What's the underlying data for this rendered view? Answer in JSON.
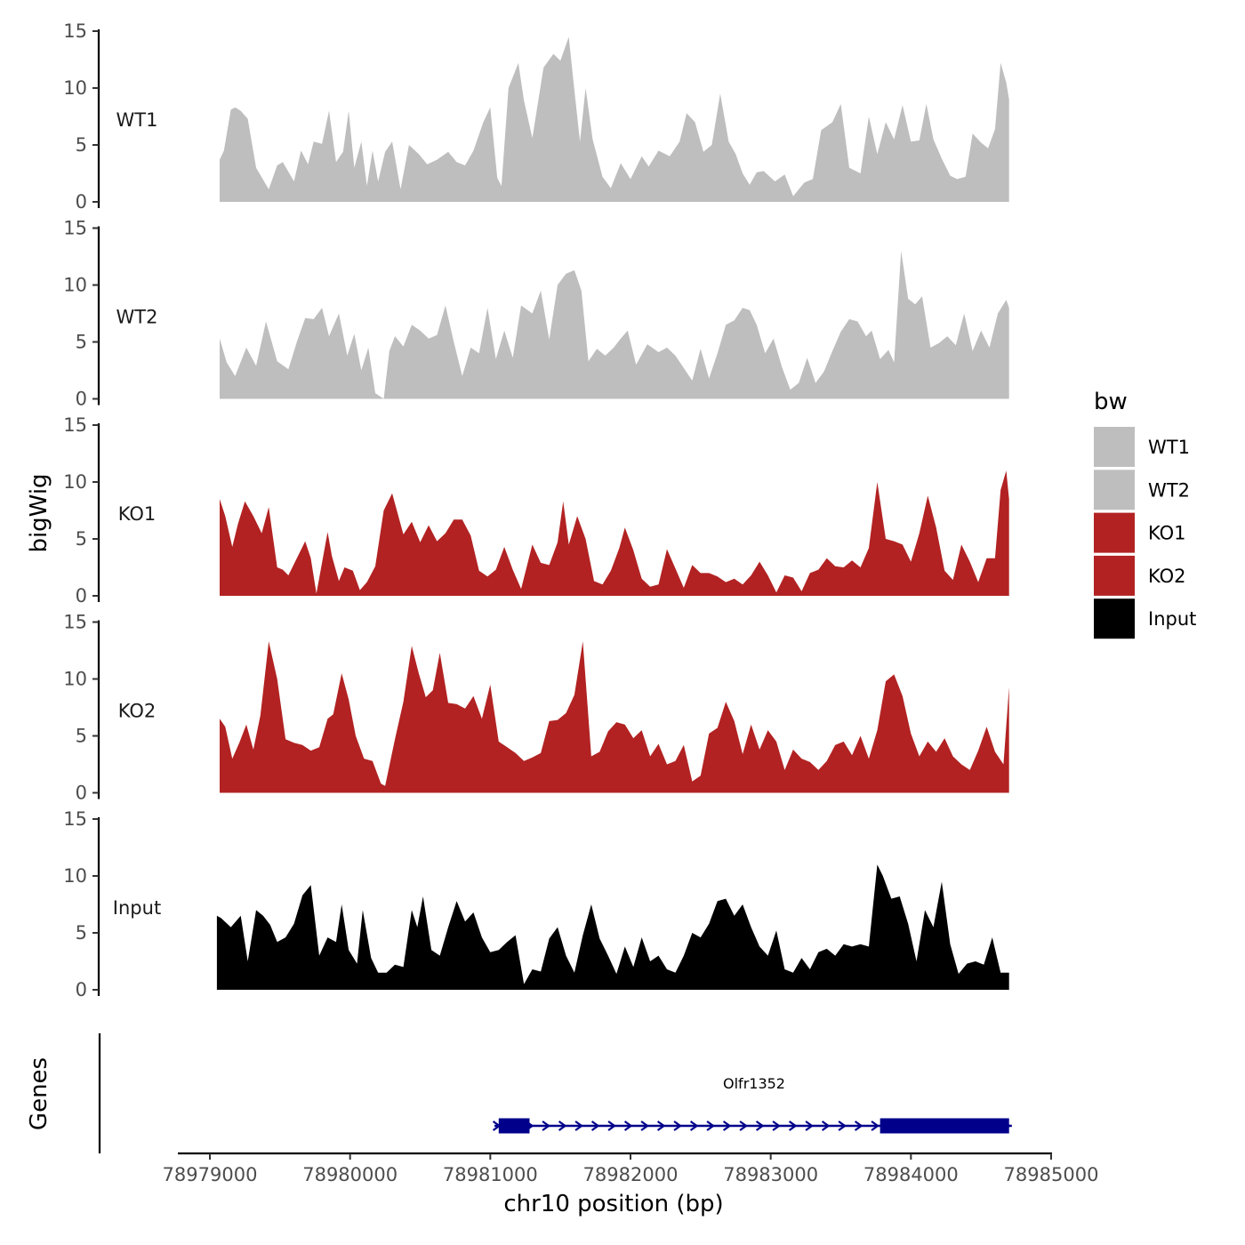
{
  "chart_data": {
    "type": "area",
    "ylabel": "bigWig",
    "xlabel": "chr10 position (bp)",
    "xlim": [
      78979000,
      78985000
    ],
    "x_ticks": [
      78979000,
      78980000,
      78981000,
      78982000,
      78983000,
      78984000,
      78985000
    ],
    "x_tick_labels": [
      "78979000",
      "78980000",
      "78981000",
      "78982000",
      "78983000",
      "78984000",
      "78985000"
    ],
    "ylim": [
      0,
      15
    ],
    "y_ticks": [
      0,
      5,
      10,
      15
    ],
    "y_tick_labels": [
      "0",
      "5",
      "10",
      "15"
    ],
    "legend": {
      "title": "bw",
      "position": "right",
      "entries": [
        {
          "label": "WT1",
          "color": "#bebebe"
        },
        {
          "label": "WT2",
          "color": "#bebebe"
        },
        {
          "label": "KO1",
          "color": "#b22222"
        },
        {
          "label": "KO2",
          "color": "#b22222"
        },
        {
          "label": "Input",
          "color": "#000000"
        }
      ]
    },
    "series": [
      {
        "name": "WT1",
        "color": "#bebebe",
        "x": [
          78979070,
          78979100,
          78979150,
          78979180,
          78979220,
          78979270,
          78979330,
          78979420,
          78979480,
          78979520,
          78979600,
          78979650,
          78979700,
          78979740,
          78979800,
          78979850,
          78979900,
          78979950,
          78979990,
          78980030,
          78980080,
          78980120,
          78980160,
          78980200,
          78980250,
          78980300,
          78980360,
          78980420,
          78980490,
          78980550,
          78980620,
          78980700,
          78980760,
          78980820,
          78980880,
          78980950,
          78981000,
          78981050,
          78981080,
          78981130,
          78981200,
          78981240,
          78981300,
          78981380,
          78981450,
          78981500,
          78981560,
          78981600,
          78981640,
          78981680,
          78981730,
          78981800,
          78981860,
          78981930,
          78982000,
          78982080,
          78982130,
          78982200,
          78982280,
          78982350,
          78982400,
          78982460,
          78982520,
          78982580,
          78982640,
          78982700,
          78982750,
          78982800,
          78982850,
          78982900,
          78982950,
          78983030,
          78983100,
          78983160,
          78983240,
          78983300,
          78983360,
          78983440,
          78983500,
          78983560,
          78983640,
          78983700,
          78983760,
          78983820,
          78983880,
          78983940,
          78984000,
          78984060,
          78984110,
          78984160,
          78984220,
          78984280,
          78984330,
          78984390,
          78984440,
          78984500,
          78984550,
          78984600,
          78984640,
          78984680,
          78984700
        ],
        "values": [
          3.7,
          4.5,
          8.1,
          8.3,
          8.0,
          7.3,
          3.0,
          1.1,
          3.2,
          3.5,
          1.8,
          4.5,
          3.3,
          5.3,
          5.1,
          8.0,
          3.5,
          4.4,
          8.0,
          3.0,
          5.3,
          1.4,
          4.5,
          1.8,
          4.4,
          5.3,
          1.1,
          5.0,
          4.2,
          3.3,
          3.7,
          4.4,
          3.5,
          3.2,
          4.5,
          7.0,
          8.3,
          2.1,
          1.4,
          10.0,
          12.2,
          8.9,
          5.6,
          11.8,
          13.0,
          12.4,
          14.5,
          9.8,
          5.3,
          10.0,
          5.5,
          2.2,
          1.2,
          3.4,
          2.0,
          4.0,
          3.1,
          4.5,
          4.0,
          5.3,
          7.8,
          7.0,
          4.4,
          5.0,
          9.5,
          5.3,
          4.2,
          2.5,
          1.5,
          2.6,
          2.7,
          1.8,
          2.4,
          0.5,
          1.7,
          2.0,
          6.3,
          7.0,
          8.6,
          3.0,
          2.5,
          7.5,
          4.2,
          7.0,
          5.5,
          8.5,
          5.3,
          5.4,
          8.6,
          5.5,
          3.8,
          2.3,
          2.0,
          2.2,
          6.0,
          5.2,
          4.7,
          6.4,
          12.2,
          10.5,
          9.0
        ]
      },
      {
        "name": "WT2",
        "color": "#bebebe",
        "x": [
          78979070,
          78979120,
          78979180,
          78979260,
          78979330,
          78979400,
          78979480,
          78979560,
          78979620,
          78979680,
          78979740,
          78979800,
          78979850,
          78979920,
          78979980,
          78980030,
          78980080,
          78980130,
          78980180,
          78980240,
          78980280,
          78980320,
          78980380,
          78980440,
          78980500,
          78980560,
          78980620,
          78980680,
          78980740,
          78980800,
          78980860,
          78980920,
          78980980,
          78981040,
          78981100,
          78981160,
          78981220,
          78981300,
          78981360,
          78981420,
          78981480,
          78981540,
          78981600,
          78981650,
          78981700,
          78981760,
          78981820,
          78981880,
          78981930,
          78981980,
          78982040,
          78982120,
          78982200,
          78982260,
          78982320,
          78982380,
          78982440,
          78982500,
          78982560,
          78982620,
          78982680,
          78982740,
          78982800,
          78982850,
          78982900,
          78982960,
          78983020,
          78983080,
          78983140,
          78983200,
          78983260,
          78983320,
          78983380,
          78983440,
          78983500,
          78983560,
          78983620,
          78983680,
          78983720,
          78983780,
          78983840,
          78983880,
          78983930,
          78983980,
          78984030,
          78984080,
          78984140,
          78984200,
          78984260,
          78984320,
          78984380,
          78984440,
          78984500,
          78984560,
          78984620,
          78984680,
          78984700
        ],
        "values": [
          5.3,
          3.2,
          2.0,
          4.5,
          2.9,
          6.8,
          3.3,
          2.6,
          5.0,
          7.1,
          7.0,
          8.0,
          5.5,
          7.5,
          3.8,
          5.7,
          2.5,
          4.5,
          0.5,
          0.0,
          4.2,
          5.5,
          4.6,
          6.5,
          6.0,
          5.3,
          5.6,
          8.2,
          5.0,
          2.0,
          4.5,
          4.0,
          8.0,
          3.5,
          6.0,
          3.6,
          8.2,
          7.5,
          9.5,
          5.2,
          10.0,
          11.0,
          11.3,
          9.5,
          3.3,
          4.4,
          3.8,
          4.5,
          5.3,
          6.0,
          3.0,
          4.8,
          4.1,
          4.5,
          3.8,
          2.7,
          1.6,
          4.4,
          1.8,
          4.0,
          6.5,
          6.9,
          8.0,
          7.8,
          6.5,
          4.0,
          5.3,
          2.8,
          0.8,
          1.4,
          3.6,
          1.4,
          2.4,
          4.2,
          5.9,
          7.0,
          6.8,
          5.5,
          6.0,
          3.5,
          4.3,
          3.2,
          13.0,
          8.8,
          8.3,
          9.0,
          4.5,
          4.9,
          5.5,
          4.7,
          7.5,
          4.2,
          6.0,
          4.5,
          7.5,
          8.7,
          8.0
        ]
      },
      {
        "name": "KO1",
        "color": "#b22222",
        "x": [
          78979070,
          78979110,
          78979160,
          78979200,
          78979250,
          78979310,
          78979370,
          78979420,
          78979480,
          78979520,
          78979560,
          78979620,
          78979680,
          78979720,
          78979760,
          78979840,
          78979870,
          78979920,
          78979960,
          78980020,
          78980070,
          78980120,
          78980180,
          78980240,
          78980300,
          78980380,
          78980440,
          78980500,
          78980560,
          78980620,
          78980680,
          78980740,
          78980800,
          78980860,
          78980920,
          78980980,
          78981040,
          78981100,
          78981160,
          78981220,
          78981300,
          78981360,
          78981420,
          78981480,
          78981520,
          78981560,
          78981620,
          78981680,
          78981740,
          78981800,
          78981860,
          78981920,
          78981960,
          78982020,
          78982080,
          78982140,
          78982200,
          78982260,
          78982320,
          78982380,
          78982440,
          78982500,
          78982560,
          78982620,
          78982680,
          78982740,
          78982800,
          78982860,
          78982920,
          78982980,
          78983040,
          78983100,
          78983160,
          78983220,
          78983280,
          78983340,
          78983400,
          78983460,
          78983520,
          78983580,
          78983640,
          78983700,
          78983760,
          78983820,
          78983880,
          78983940,
          78984000,
          78984060,
          78984120,
          78984180,
          78984240,
          78984300,
          78984360,
          78984420,
          78984480,
          78984540,
          78984600,
          78984640,
          78984680,
          78984700
        ],
        "values": [
          8.5,
          7.0,
          4.3,
          6.3,
          8.3,
          7.0,
          5.5,
          7.8,
          2.5,
          2.3,
          1.8,
          3.3,
          4.8,
          3.3,
          0.2,
          5.6,
          3.5,
          1.3,
          2.5,
          2.2,
          0.5,
          1.2,
          2.6,
          7.5,
          9.0,
          5.4,
          6.5,
          4.7,
          6.2,
          4.8,
          5.5,
          6.7,
          6.7,
          5.3,
          2.2,
          1.7,
          2.3,
          4.3,
          2.3,
          0.6,
          4.5,
          2.9,
          2.7,
          4.7,
          8.3,
          4.5,
          7.0,
          5.0,
          1.3,
          1.0,
          2.2,
          4.2,
          6.0,
          4.0,
          1.5,
          0.8,
          1.0,
          4.1,
          2.4,
          0.7,
          2.7,
          2.0,
          2.0,
          1.7,
          1.2,
          1.5,
          1.0,
          1.8,
          3.0,
          1.8,
          0.3,
          1.8,
          1.6,
          0.4,
          2.0,
          2.3,
          3.3,
          2.6,
          2.5,
          3.1,
          2.5,
          4.2,
          10.0,
          5.0,
          4.8,
          4.5,
          3.0,
          5.5,
          8.8,
          6.0,
          2.2,
          1.4,
          4.5,
          3.0,
          1.2,
          3.3,
          3.3,
          9.3,
          11.0,
          8.5
        ]
      },
      {
        "name": "KO2",
        "color": "#b22222",
        "x": [
          78979070,
          78979110,
          78979160,
          78979210,
          78979260,
          78979310,
          78979360,
          78979420,
          78979480,
          78979540,
          78979600,
          78979660,
          78979720,
          78979780,
          78979840,
          78979880,
          78979940,
          78979990,
          78980040,
          78980100,
          78980160,
          78980220,
          78980250,
          78980320,
          78980380,
          78980440,
          78980490,
          78980540,
          78980590,
          78980640,
          78980700,
          78980760,
          78980820,
          78980880,
          78980940,
          78981000,
          78981060,
          78981120,
          78981180,
          78981240,
          78981300,
          78981360,
          78981420,
          78981480,
          78981540,
          78981600,
          78981660,
          78981720,
          78981780,
          78981840,
          78981900,
          78981960,
          78982020,
          78982080,
          78982140,
          78982200,
          78982260,
          78982320,
          78982380,
          78982440,
          78982500,
          78982560,
          78982620,
          78982680,
          78982740,
          78982800,
          78982860,
          78982920,
          78982980,
          78983040,
          78983100,
          78983160,
          78983220,
          78983280,
          78983340,
          78983400,
          78983460,
          78983520,
          78983580,
          78983640,
          78983700,
          78983760,
          78983820,
          78983880,
          78983940,
          78984000,
          78984060,
          78984120,
          78984180,
          78984240,
          78984300,
          78984360,
          78984420,
          78984480,
          78984540,
          78984600,
          78984660,
          78984700
        ],
        "values": [
          6.5,
          5.8,
          3.0,
          4.4,
          6.0,
          3.8,
          6.8,
          13.3,
          10.0,
          4.7,
          4.4,
          4.2,
          3.7,
          4.0,
          6.5,
          6.9,
          10.5,
          8.2,
          5.0,
          3.0,
          2.8,
          0.8,
          0.6,
          4.7,
          8.0,
          12.9,
          10.5,
          8.4,
          9.0,
          12.3,
          7.9,
          7.8,
          7.4,
          8.5,
          6.5,
          9.5,
          4.5,
          4.0,
          3.5,
          2.8,
          3.1,
          3.5,
          6.3,
          6.4,
          7.0,
          8.6,
          13.3,
          3.2,
          3.6,
          5.4,
          6.2,
          6.0,
          4.8,
          5.5,
          3.2,
          4.3,
          2.5,
          2.8,
          4.2,
          1.0,
          1.5,
          5.2,
          5.7,
          8.0,
          6.3,
          3.4,
          6.0,
          3.8,
          5.5,
          4.5,
          2.0,
          3.8,
          3.0,
          2.7,
          2.0,
          2.8,
          4.2,
          4.5,
          3.3,
          5.0,
          3.0,
          5.5,
          9.8,
          10.4,
          8.5,
          5.2,
          3.2,
          4.5,
          3.6,
          4.8,
          3.2,
          2.5,
          2.0,
          3.7,
          5.8,
          3.6,
          2.5,
          9.3
        ]
      },
      {
        "name": "Input",
        "color": "#000000",
        "x": [
          78979050,
          78979080,
          78979150,
          78979220,
          78979270,
          78979330,
          78979380,
          78979430,
          78979480,
          78979540,
          78979600,
          78979660,
          78979720,
          78979780,
          78979840,
          78979900,
          78979940,
          78979990,
          78980050,
          78980090,
          78980150,
          78980200,
          78980260,
          78980320,
          78980380,
          78980440,
          78980480,
          78980520,
          78980580,
          78980640,
          78980700,
          78980760,
          78980820,
          78980880,
          78980940,
          78981000,
          78981060,
          78981120,
          78981180,
          78981240,
          78981300,
          78981360,
          78981420,
          78981480,
          78981540,
          78981600,
          78981660,
          78981720,
          78981780,
          78981840,
          78981900,
          78981960,
          78982020,
          78982080,
          78982140,
          78982200,
          78982260,
          78982320,
          78982380,
          78982440,
          78982500,
          78982560,
          78982620,
          78982680,
          78982740,
          78982800,
          78982860,
          78982920,
          78982980,
          78983040,
          78983100,
          78983160,
          78983220,
          78983280,
          78983340,
          78983400,
          78983460,
          78983520,
          78983580,
          78983640,
          78983700,
          78983760,
          78983800,
          78983860,
          78983920,
          78983980,
          78984040,
          78984100,
          78984160,
          78984220,
          78984280,
          78984340,
          78984400,
          78984460,
          78984520,
          78984580,
          78984640,
          78984700
        ],
        "values": [
          6.5,
          6.3,
          5.5,
          6.5,
          2.5,
          7.0,
          6.5,
          5.7,
          4.2,
          4.6,
          5.8,
          8.3,
          9.2,
          3.0,
          4.6,
          4.2,
          7.5,
          3.5,
          2.3,
          7.0,
          2.8,
          1.5,
          1.5,
          2.2,
          2.0,
          7.0,
          5.5,
          8.2,
          3.5,
          3.0,
          5.5,
          7.8,
          6.0,
          6.8,
          4.6,
          3.3,
          3.5,
          4.2,
          4.8,
          0.5,
          1.8,
          1.6,
          4.5,
          5.5,
          3.0,
          1.5,
          4.8,
          7.5,
          4.5,
          3.0,
          1.4,
          3.8,
          2.0,
          4.6,
          2.5,
          3.0,
          1.8,
          1.5,
          3.0,
          5.0,
          4.6,
          5.8,
          7.8,
          8.0,
          6.5,
          7.5,
          5.5,
          3.8,
          3.0,
          5.2,
          1.8,
          1.5,
          2.8,
          1.8,
          3.3,
          3.6,
          3.0,
          4.0,
          3.8,
          4.0,
          3.8,
          11.0,
          10.0,
          8.0,
          8.2,
          5.8,
          2.5,
          7.0,
          5.5,
          9.5,
          4.0,
          1.4,
          2.3,
          2.5,
          2.2,
          4.6,
          1.5,
          1.5
        ]
      }
    ],
    "genes": {
      "title": "Genes",
      "gene_name": "Olfr1352",
      "strand": "+",
      "color": "#00008b",
      "start": 78981030,
      "end": 78984720,
      "exons": [
        [
          78981060,
          78981280
        ],
        [
          78983780,
          78984700
        ]
      ]
    }
  }
}
